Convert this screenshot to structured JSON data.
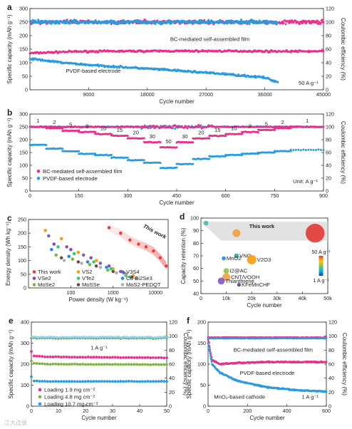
{
  "chart_data": [
    {
      "panel": "a",
      "type": "scatter",
      "xlabel": "Cycle number",
      "ylabel": "Specific capacity (mAh g⁻¹)",
      "y2label": "Coulombic efficiency (%)",
      "xlim": [
        0,
        45000
      ],
      "ylim": [
        0,
        300
      ],
      "y2lim": [
        0,
        120
      ],
      "xticks": [
        9000,
        18000,
        27000,
        36000,
        45000
      ],
      "yticks": [
        0,
        50,
        100,
        150,
        200,
        250,
        300
      ],
      "y2ticks": [
        0,
        20,
        40,
        60,
        80,
        100,
        120
      ],
      "annotations": [
        "BC-mediated self-assembled film",
        "PVDF-based electrode",
        "50 A g⁻¹"
      ],
      "series": [
        {
          "name": "BC-mediated self-assembled film",
          "axis": "left",
          "color": "#e8308a",
          "x": [
            0,
            5000,
            10000,
            20000,
            30000,
            40000,
            45000
          ],
          "y": [
            135,
            140,
            142,
            143,
            143,
            142,
            142
          ]
        },
        {
          "name": "PVDF-based electrode",
          "axis": "left",
          "color": "#2b9be0",
          "x": [
            0,
            5000,
            10000,
            20000,
            30000,
            36000,
            38000
          ],
          "y": [
            115,
            100,
            90,
            75,
            58,
            45,
            28
          ]
        },
        {
          "name": "BC CE",
          "axis": "right",
          "color": "#e8308a",
          "x": [
            0,
            45000
          ],
          "y": [
            100,
            100
          ]
        },
        {
          "name": "PVDF CE",
          "axis": "right",
          "color": "#2b9be0",
          "x": [
            0,
            38000
          ],
          "y": [
            100,
            100
          ]
        }
      ]
    },
    {
      "panel": "b",
      "type": "scatter",
      "xlabel": "Cycle number",
      "ylabel": "Specific capacity (mAh g⁻¹)",
      "y2label": "Coulombic efficiency (%)",
      "xlim": [
        0,
        900
      ],
      "ylim": [
        0,
        300
      ],
      "y2lim": [
        0,
        120
      ],
      "xticks": [
        0,
        150,
        300,
        450,
        600,
        750,
        900
      ],
      "yticks": [
        0,
        50,
        100,
        150,
        200,
        250,
        300
      ],
      "y2ticks": [
        0,
        20,
        40,
        60,
        80,
        100,
        120
      ],
      "rate_labels": [
        "1",
        "2",
        "5",
        "8",
        "10",
        "15",
        "20",
        "30",
        "50",
        "30",
        "20",
        "15",
        "10",
        "8",
        "5",
        "2",
        "1"
      ],
      "legend": [
        "BC-mediated self-assembled film",
        "PVDF-based electrode"
      ],
      "unit_label": "Unit: A g⁻¹",
      "series": [
        {
          "name": "BC-mediated self-assembled film",
          "color": "#e8308a",
          "x": [
            25,
            75,
            125,
            175,
            225,
            275,
            325,
            375,
            425,
            475,
            525,
            575,
            625,
            675,
            725,
            775,
            850
          ],
          "y": [
            250,
            245,
            235,
            230,
            222,
            215,
            205,
            190,
            170,
            190,
            205,
            215,
            222,
            230,
            238,
            245,
            250
          ]
        },
        {
          "name": "PVDF-based electrode",
          "color": "#2b9be0",
          "x": [
            25,
            75,
            125,
            175,
            225,
            275,
            325,
            375,
            425,
            475,
            525,
            575,
            625,
            675,
            725,
            775,
            850
          ],
          "y": [
            180,
            165,
            155,
            145,
            140,
            130,
            120,
            110,
            90,
            105,
            125,
            135,
            140,
            145,
            150,
            155,
            160
          ]
        }
      ]
    },
    {
      "panel": "c",
      "type": "scatter",
      "xlabel": "Power density (W kg⁻¹)",
      "ylabel": "Energy density (Wh kg⁻¹)",
      "xscale": "log",
      "xlim": [
        10,
        20000
      ],
      "ylim": [
        0,
        250
      ],
      "xticks": [
        100,
        1000,
        10000
      ],
      "yticks": [
        0,
        50,
        100,
        150,
        200,
        250
      ],
      "annotation": "This work",
      "legend": [
        {
          "name": "This work",
          "color": "#e53935"
        },
        {
          "name": "VS2",
          "color": "#f39c12"
        },
        {
          "name": "V3S4",
          "color": "#7b5ea7"
        },
        {
          "name": "VSe2",
          "color": "#8e44ad"
        },
        {
          "name": "VTe2",
          "color": "#2ecc71"
        },
        {
          "name": "Cu-Bi2Se3",
          "color": "#1e88e5"
        },
        {
          "name": "MoSe2",
          "color": "#7cb342"
        },
        {
          "name": "MoSSe",
          "color": "#6d4c41"
        },
        {
          "name": "MoS2-PEDOT",
          "color": "#b0b0b0"
        }
      ],
      "series": [
        {
          "name": "This work",
          "x": [
            800,
            1500,
            2500,
            4000,
            6000,
            9000,
            13000,
            18000
          ],
          "y": [
            220,
            200,
            175,
            160,
            150,
            135,
            110,
            80
          ]
        },
        {
          "name": "VS2",
          "x": [
            25,
            60,
            150,
            400,
            1000,
            3000
          ],
          "y": [
            210,
            180,
            130,
            100,
            70,
            45
          ]
        },
        {
          "name": "V3S4",
          "x": [
            30,
            80,
            200,
            500,
            1500
          ],
          "y": [
            190,
            150,
            120,
            90,
            60
          ]
        },
        {
          "name": "VSe2",
          "x": [
            40,
            100,
            300,
            800,
            2000
          ],
          "y": [
            160,
            140,
            110,
            80,
            50
          ]
        },
        {
          "name": "VTe2",
          "x": [
            50,
            120,
            350,
            900,
            2500
          ],
          "y": [
            150,
            125,
            95,
            70,
            40
          ]
        },
        {
          "name": "Cu-Bi2Se3",
          "x": [
            35,
            90,
            250,
            700,
            1800
          ],
          "y": [
            140,
            115,
            95,
            75,
            55
          ]
        },
        {
          "name": "MoSe2",
          "x": [
            45,
            110,
            280,
            750,
            2000
          ],
          "y": [
            120,
            105,
            85,
            65,
            45
          ]
        },
        {
          "name": "MoSSe",
          "x": [
            60,
            150,
            400,
            1000,
            2800
          ],
          "y": [
            110,
            95,
            80,
            60,
            40
          ]
        },
        {
          "name": "MoS2-PEDOT",
          "x": [
            70,
            180,
            500,
            1200,
            3500
          ],
          "y": [
            100,
            90,
            75,
            55,
            35
          ]
        }
      ]
    },
    {
      "panel": "d",
      "type": "bubble",
      "xlabel": "Cycle number",
      "ylabel": "Capacity retention (%)",
      "xlim": [
        0,
        50000
      ],
      "ylim": [
        40,
        100
      ],
      "xticks": [
        0,
        10000,
        20000,
        30000,
        40000,
        50000
      ],
      "xticklabels": [
        "0",
        "10k",
        "20k",
        "30k",
        "40k",
        "50k"
      ],
      "yticks": [
        40,
        50,
        60,
        70,
        80,
        90,
        100
      ],
      "colorbar": {
        "top": "50 A g⁻¹",
        "bottom": "1 A g⁻¹"
      },
      "annotation": "This work",
      "points": [
        {
          "label": "This work",
          "x": 45000,
          "y": 88,
          "rate": 50,
          "color": "#e53935"
        },
        {
          "label": "",
          "x": 2000,
          "y": 96,
          "rate": 5,
          "color": "#4db6ac"
        },
        {
          "label": "",
          "x": 14000,
          "y": 88,
          "rate": 15,
          "color": "#f0a040"
        },
        {
          "label": "VNO",
          "x": 14000,
          "y": 70,
          "rate": 5,
          "color": "#26a69a"
        },
        {
          "label": "MnO2",
          "x": 9000,
          "y": 68,
          "rate": 3,
          "color": "#1e88e5"
        },
        {
          "label": "V2O3",
          "x": 20000,
          "y": 67,
          "rate": 20,
          "color": "#f39c12"
        },
        {
          "label": "I2@AC",
          "x": 10000,
          "y": 58,
          "rate": 8,
          "color": "#8bc34a"
        },
        {
          "label": "CNT/VOOH",
          "x": 10000,
          "y": 53,
          "rate": 15,
          "color": "#f0a040"
        },
        {
          "label": "Thianthrene",
          "x": 8000,
          "y": 50,
          "rate": 12,
          "color": "#7e57c2"
        },
        {
          "label": "KFeMnCHF",
          "x": 15000,
          "y": 47,
          "rate": 2,
          "color": "#3949ab"
        }
      ]
    },
    {
      "panel": "e",
      "type": "scatter",
      "xlabel": "Cycle number",
      "ylabel": "Specific capacity (mAh g⁻¹)",
      "y2label": "Coulombic efficiency (%)",
      "xlim": [
        0,
        50
      ],
      "ylim": [
        0,
        400
      ],
      "y2lim": [
        0,
        120
      ],
      "xticks": [
        0,
        10,
        20,
        30,
        40,
        50
      ],
      "yticks": [
        0,
        100,
        200,
        300,
        400
      ],
      "y2ticks": [
        0,
        20,
        40,
        60,
        80,
        100,
        120
      ],
      "annotation": "1 A g⁻¹",
      "series": [
        {
          "name": "Loading 1.9 mg cm⁻²",
          "color": "#e8308a",
          "x": [
            0,
            1,
            5,
            50
          ],
          "y": [
            260,
            240,
            235,
            230
          ]
        },
        {
          "name": "Loading 4.8 mg cm⁻²",
          "color": "#7cb342",
          "x": [
            0,
            1,
            5,
            50
          ],
          "y": [
            215,
            205,
            200,
            198
          ]
        },
        {
          "name": "Loading 10.7 mg cm⁻²",
          "color": "#2b9be0",
          "x": [
            0,
            1,
            5,
            50
          ],
          "y": [
            140,
            120,
            118,
            118
          ]
        },
        {
          "name": "CE",
          "axis": "right",
          "color": "#4db6ac",
          "x": [
            0,
            50
          ],
          "y": [
            97,
            97
          ]
        }
      ]
    },
    {
      "panel": "f",
      "type": "scatter",
      "xlabel": "Cycle number",
      "ylabel": "Specific capacity (mAh g⁻¹)",
      "y2label": "Coulombic efficiency (%)",
      "xlim": [
        0,
        600
      ],
      "ylim": [
        0,
        200
      ],
      "y2lim": [
        0,
        120
      ],
      "xticks": [
        0,
        200,
        400,
        600
      ],
      "yticks": [
        0,
        50,
        100,
        150,
        200
      ],
      "y2ticks": [
        0,
        20,
        40,
        60,
        80,
        100,
        120
      ],
      "annotations": [
        "BC-mediated self-assembled film",
        "PVDF-based electrode",
        "MnO₂-based cathode",
        "1 A g⁻¹"
      ],
      "series": [
        {
          "name": "BC-mediated self-assembled film",
          "color": "#e8308a",
          "x": [
            0,
            20,
            60,
            150,
            300,
            450,
            600
          ],
          "y": [
            160,
            110,
            100,
            103,
            105,
            105,
            105
          ]
        },
        {
          "name": "PVDF-based electrode",
          "color": "#2b9be0",
          "x": [
            0,
            20,
            60,
            150,
            300,
            450,
            600
          ],
          "y": [
            150,
            100,
            80,
            60,
            45,
            38,
            35
          ]
        },
        {
          "name": "BC CE",
          "axis": "right",
          "color": "#e8308a",
          "x": [
            0,
            600
          ],
          "y": [
            98,
            98
          ]
        },
        {
          "name": "PVDF CE",
          "axis": "right",
          "color": "#2b9be0",
          "x": [
            0,
            600
          ],
          "y": [
            97,
            97
          ]
        }
      ]
    }
  ],
  "watermark": "江大边录"
}
